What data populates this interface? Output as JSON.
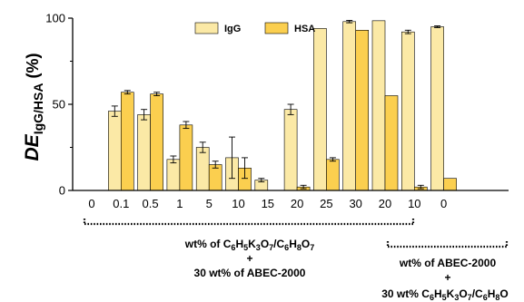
{
  "chart_data": {
    "type": "bar",
    "ylabel": {
      "main": "DE",
      "sub": "IgG/HSA",
      "unit": " (%)"
    },
    "ylim": [
      0,
      100
    ],
    "yticks": [
      0,
      50,
      100
    ],
    "categories": [
      "0",
      "0.1",
      "0.5",
      "1",
      "5",
      "10",
      "15",
      "20",
      "25",
      "30",
      "20",
      "10",
      "0"
    ],
    "legend_position": "top",
    "grid": false,
    "series": [
      {
        "name": "IgG",
        "color": "#fbe9a6",
        "values": [
          null,
          46,
          44,
          18,
          25,
          19,
          6,
          47,
          94,
          98,
          98.5,
          92,
          95
        ],
        "errors": [
          null,
          3,
          3,
          2,
          3,
          12,
          1,
          3,
          0,
          0.7,
          0,
          1,
          0.5
        ]
      },
      {
        "name": "HSA",
        "color": "#fbcf4f",
        "values": [
          null,
          57,
          56,
          38,
          15,
          13,
          null,
          2,
          18,
          93,
          55,
          2,
          7
        ],
        "errors": [
          null,
          1,
          1,
          2,
          2,
          6,
          null,
          1,
          1,
          0,
          0,
          1,
          0
        ]
      }
    ],
    "group_annotations": [
      {
        "line1_pre": "wt% of C",
        "line1_formula": [
          [
            "6",
            "H"
          ],
          [
            "5",
            "K"
          ],
          [
            "3",
            "O"
          ],
          [
            "7",
            "/C"
          ],
          [
            "6",
            "H"
          ],
          [
            "8",
            "O"
          ],
          [
            "7",
            ""
          ]
        ],
        "line2": "+",
        "line3": "30 wt% of ABEC-2000"
      },
      {
        "line1": "wt% of ABEC-2000",
        "line2": "+",
        "line3_pre": "30 wt% C",
        "line3_formula": [
          [
            "6",
            "H"
          ],
          [
            "5",
            "K"
          ],
          [
            "3",
            "O"
          ],
          [
            "7",
            "/C"
          ],
          [
            "6",
            "H"
          ],
          [
            "8",
            "O"
          ]
        ]
      }
    ]
  }
}
